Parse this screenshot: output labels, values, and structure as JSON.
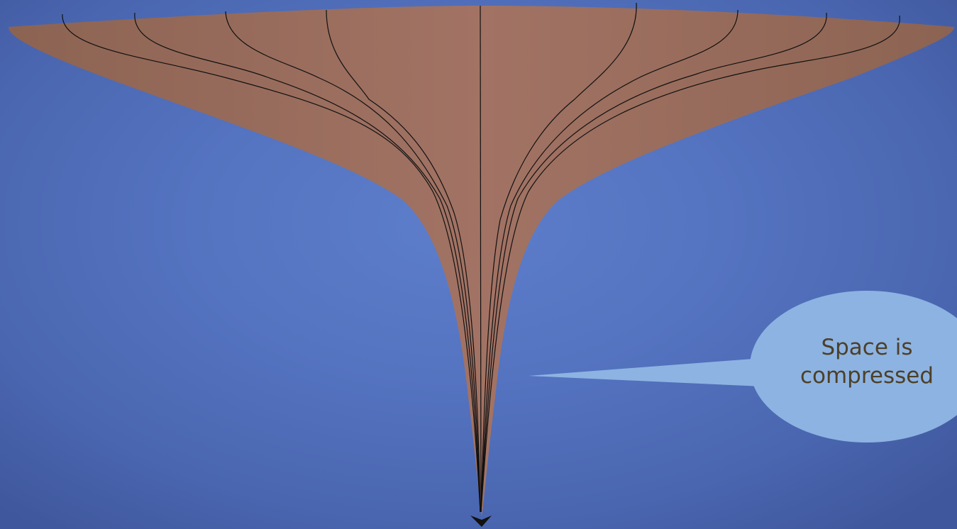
{
  "colors": {
    "background": "#5473c0",
    "funnel_fill": "#a0705f",
    "funnel_edge": "#8c6050",
    "line": "#111111",
    "callout_fill": "#8db3e2",
    "callout_text": "#4d4028"
  },
  "callout": {
    "line1": "Space is",
    "line2": "compressed"
  }
}
